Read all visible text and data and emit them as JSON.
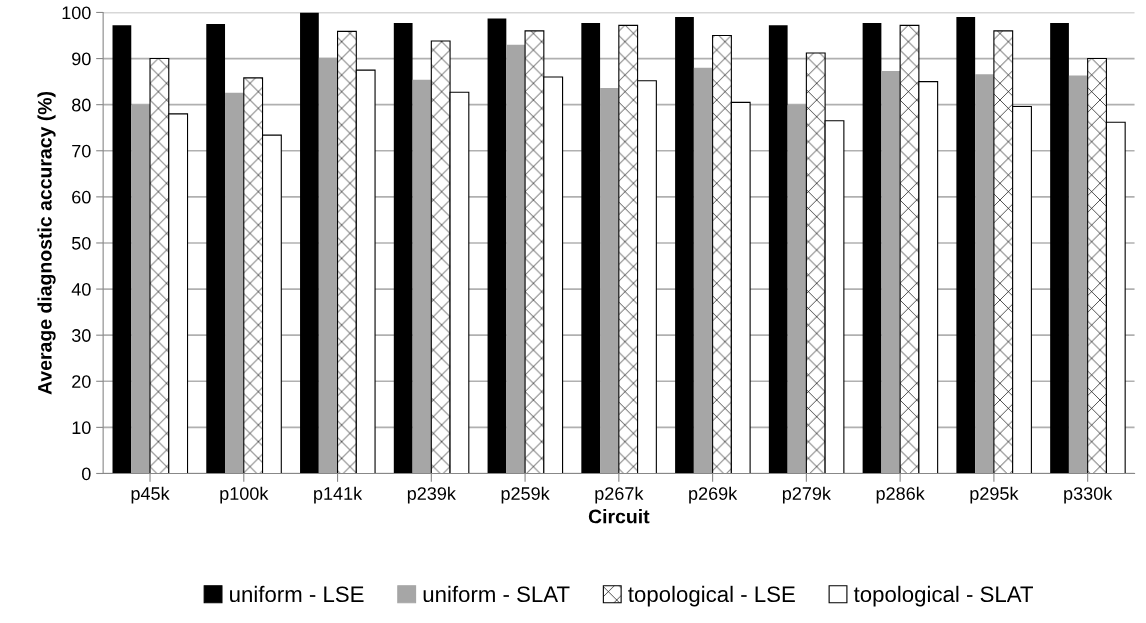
{
  "chart_data": {
    "type": "bar",
    "xlabel": "Circuit",
    "ylabel": "Average diagnostic accuracy (%)",
    "categories": [
      "p45k",
      "p100k",
      "p141k",
      "p239k",
      "p259k",
      "p267k",
      "p269k",
      "p279k",
      "p286k",
      "p295k",
      "p330k"
    ],
    "series": [
      {
        "name": "uniform - LSE",
        "color": "#000000",
        "values": [
          97.2,
          97.5,
          100,
          97.7,
          98.7,
          97.7,
          99,
          97.2,
          97.7,
          99,
          97.7
        ]
      },
      {
        "name": "uniform - SLAT",
        "color": "#a6a6a6",
        "values": [
          80,
          82.6,
          90.2,
          85.4,
          93,
          83.6,
          88,
          80,
          87.3,
          86.6,
          86.3
        ]
      },
      {
        "name": "topological - LSE",
        "color": "#ffffff",
        "values": [
          90,
          85.8,
          95.9,
          93.8,
          96,
          97.2,
          95,
          91.2,
          97.2,
          96,
          90
        ]
      },
      {
        "name": "topological - SLAT",
        "color": "#ffffff",
        "values": [
          78,
          73.4,
          87.5,
          82.7,
          86,
          85.2,
          80.5,
          76.5,
          85,
          79.6,
          76.2
        ]
      }
    ],
    "ylim": [
      0,
      100
    ],
    "yticks": [
      0,
      10,
      20,
      30,
      40,
      50,
      60,
      70,
      80,
      90,
      100
    ],
    "grid": "y",
    "legend": "bottom"
  }
}
